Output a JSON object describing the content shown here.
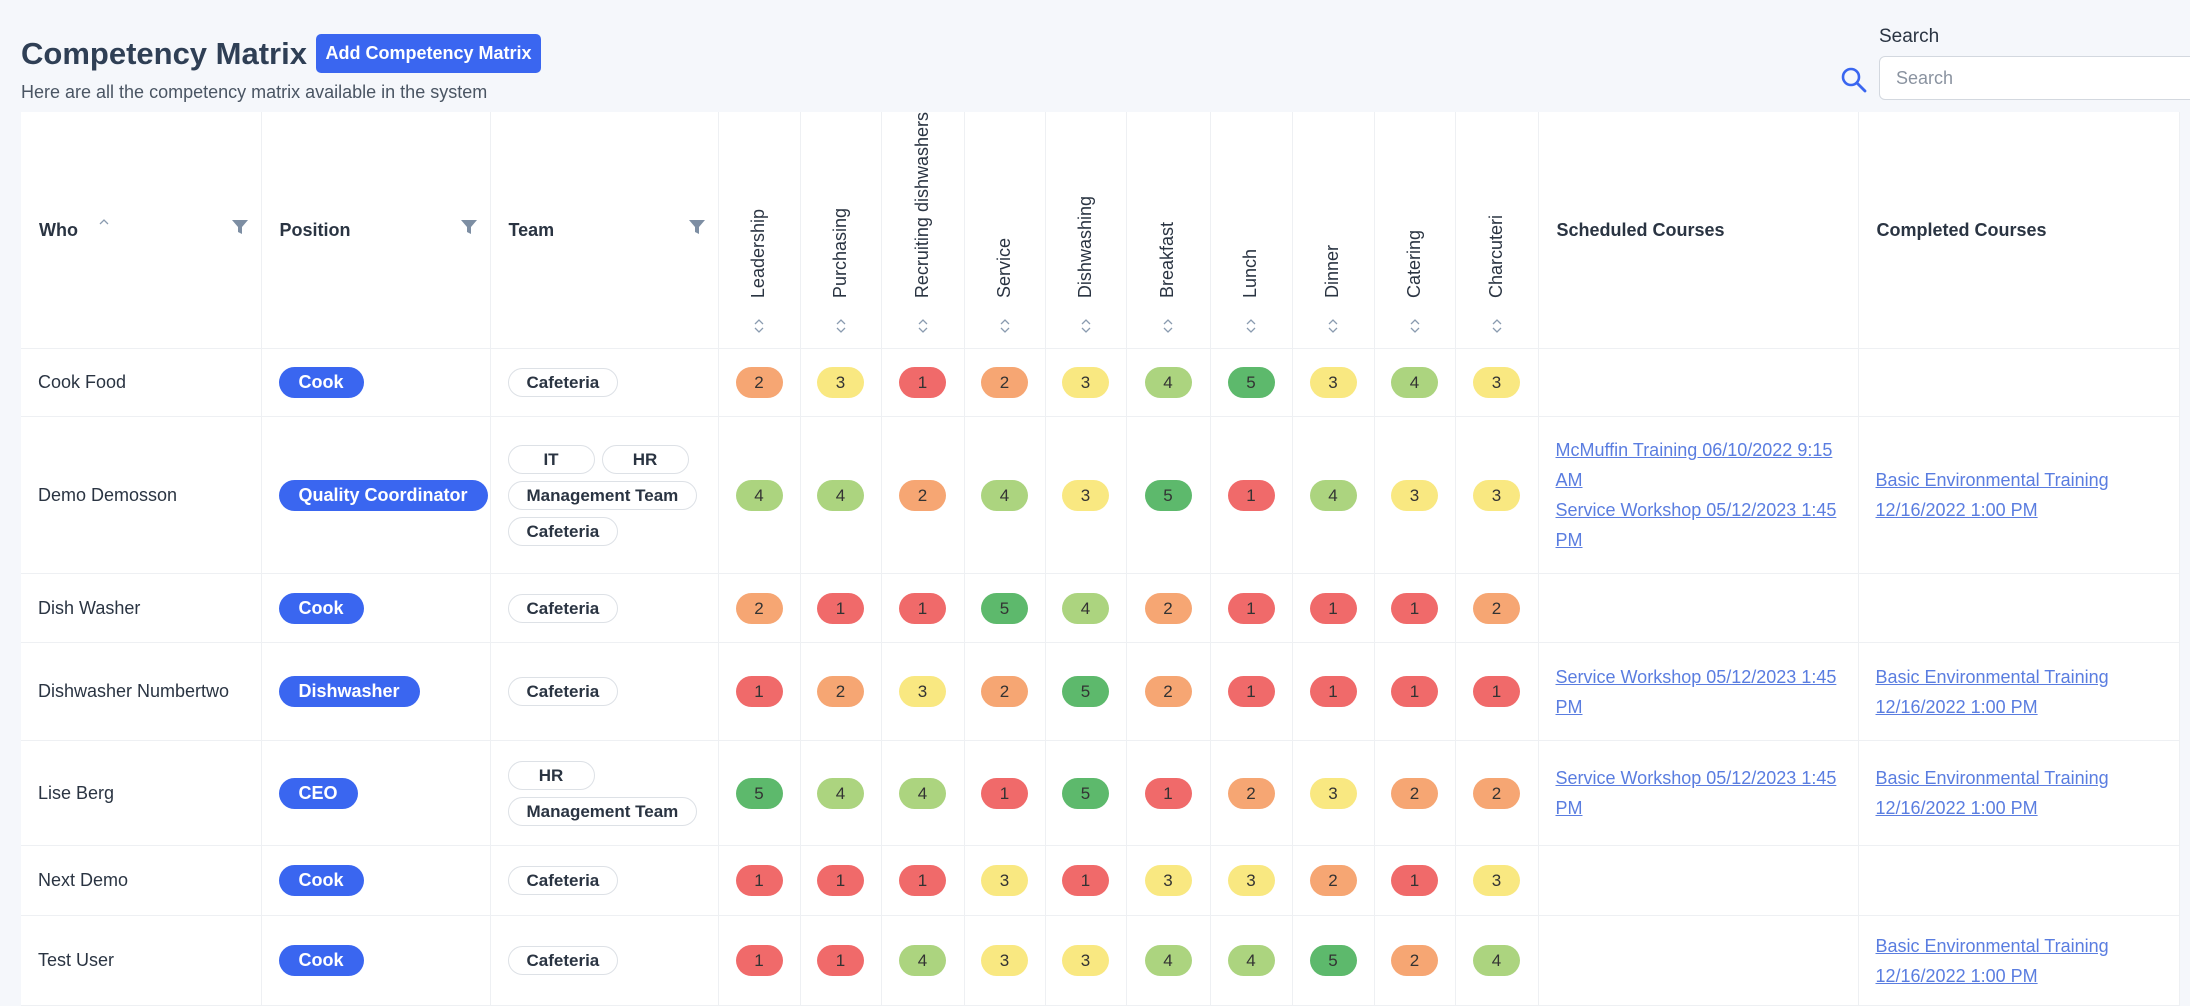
{
  "header": {
    "title": "Competency Matrix",
    "add_button": "Add Competency Matrix",
    "subtitle": "Here are all the competency matrix available in the system",
    "search_label": "Search",
    "search_placeholder": "Search"
  },
  "table": {
    "columns": [
      "Who",
      "Position",
      "Team",
      "Leadership",
      "Purchasing",
      "Recruiting dishwashers",
      "Service",
      "Dishwashing",
      "Breakfast",
      "Lunch",
      "Dinner",
      "Catering",
      "Charcuteri",
      "Scheduled Courses",
      "Completed Courses"
    ],
    "score_colors": {
      "1": "#f06a6a",
      "2": "#f6a673",
      "3": "#f9e881",
      "4": "#acd47f",
      "5": "#5db96c"
    },
    "rows": [
      {
        "who": "Cook Food",
        "position": "Cook",
        "teams": [
          "Cafeteria"
        ],
        "scores": [
          2,
          3,
          1,
          2,
          3,
          4,
          5,
          3,
          4,
          3
        ],
        "scheduled": [],
        "completed": []
      },
      {
        "who": "Demo Demosson",
        "position": "Quality Coordinator",
        "teams": [
          "IT",
          "HR",
          "Management Team",
          "Cafeteria"
        ],
        "scores": [
          4,
          4,
          2,
          4,
          3,
          5,
          1,
          4,
          3,
          3
        ],
        "scheduled": [
          "McMuffin Training 06/10/2022 9:15 AM",
          "Service Workshop 05/12/2023 1:45 PM"
        ],
        "completed": [
          "Basic Environmental Training 12/16/2022 1:00 PM"
        ]
      },
      {
        "who": "Dish Washer",
        "position": "Cook",
        "teams": [
          "Cafeteria"
        ],
        "scores": [
          2,
          1,
          1,
          5,
          4,
          2,
          1,
          1,
          1,
          2
        ],
        "scheduled": [],
        "completed": []
      },
      {
        "who": "Dishwasher Numbertwo",
        "position": "Dishwasher",
        "teams": [
          "Cafeteria"
        ],
        "scores": [
          1,
          2,
          3,
          2,
          5,
          2,
          1,
          1,
          1,
          1
        ],
        "scheduled": [
          "Service Workshop 05/12/2023 1:45 PM"
        ],
        "completed": [
          "Basic Environmental Training 12/16/2022 1:00 PM"
        ]
      },
      {
        "who": "Lise Berg",
        "position": "CEO",
        "teams": [
          "HR",
          "Management Team"
        ],
        "scores": [
          5,
          4,
          4,
          1,
          5,
          1,
          2,
          3,
          2,
          2
        ],
        "scheduled": [
          "Service Workshop 05/12/2023 1:45 PM"
        ],
        "completed": [
          "Basic Environmental Training 12/16/2022 1:00 PM"
        ]
      },
      {
        "who": "Next Demo",
        "position": "Cook",
        "teams": [
          "Cafeteria"
        ],
        "scores": [
          1,
          1,
          1,
          3,
          1,
          3,
          3,
          2,
          1,
          3
        ],
        "scheduled": [],
        "completed": []
      },
      {
        "who": "Test User",
        "position": "Cook",
        "teams": [
          "Cafeteria"
        ],
        "scores": [
          1,
          1,
          4,
          3,
          3,
          4,
          4,
          5,
          2,
          4
        ],
        "scheduled": [],
        "completed": [
          "Basic Environmental Training 12/16/2022 1:00 PM"
        ]
      }
    ]
  }
}
